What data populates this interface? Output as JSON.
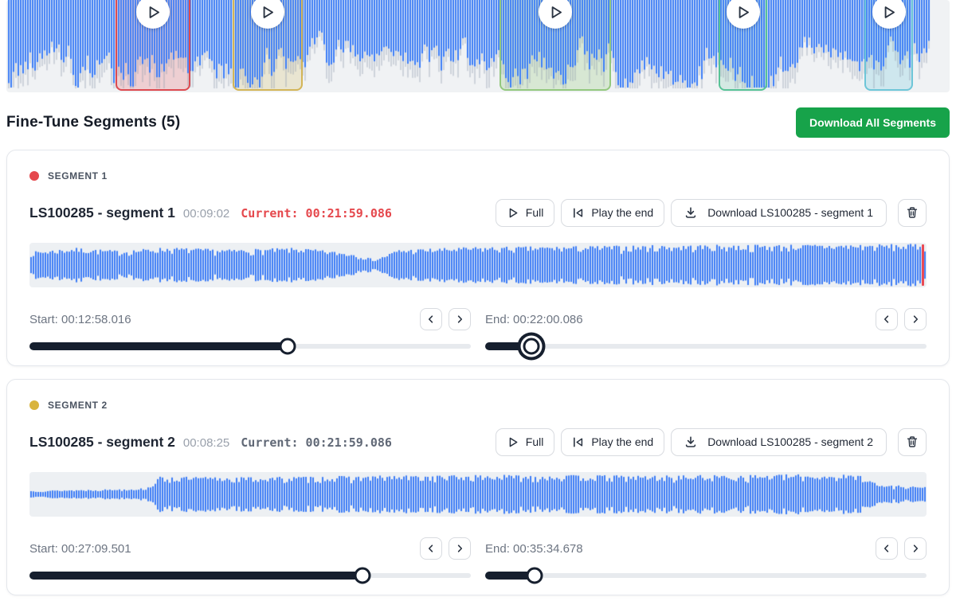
{
  "overview": {
    "wave_color": "#3b7cf6",
    "play_icon": "play",
    "segments": [
      {
        "name": "segment-1",
        "border": "#dd4a50",
        "fill": "rgba(229,72,77,0.20)",
        "left_pct": 11.6,
        "width_pct": 7.9
      },
      {
        "name": "segment-2",
        "border": "#d3b557",
        "fill": "rgba(211,181,87,0.22)",
        "left_pct": 24.0,
        "width_pct": 7.4
      },
      {
        "name": "segment-3",
        "border": "#93c87e",
        "fill": "rgba(150,205,125,0.28)",
        "left_pct": 52.3,
        "width_pct": 11.8
      },
      {
        "name": "segment-4",
        "border": "#57c296",
        "fill": "rgba(98,200,160,0.20)",
        "left_pct": 75.5,
        "width_pct": 5.2
      },
      {
        "name": "segment-5",
        "border": "#6ec6d8",
        "fill": "rgba(120,205,222,0.28)",
        "left_pct": 91.0,
        "width_pct": 5.1
      }
    ]
  },
  "header": {
    "title": "Fine-Tune Segments (5)",
    "download_all_label": "Download All Segments",
    "download_all_color": "#17a34a"
  },
  "segments": [
    {
      "label": "SEGMENT 1",
      "dot_color": "#e5484d",
      "title": "LS100285 - segment 1",
      "duration": "00:09:02",
      "current_label": "Current:",
      "current_value": "00:21:59.086",
      "current_color": "#e5484d",
      "full_label": "Full",
      "play_end_label": "Play the end",
      "download_label": "Download LS100285 - segment 1",
      "start_label": "Start: 00:12:58.016",
      "end_label": "End: 00:22:00.086",
      "start_pct": 58.5,
      "end_pct": 10.5,
      "end_focused": true,
      "playhead": true
    },
    {
      "label": "SEGMENT 2",
      "dot_color": "#d9b43d",
      "title": "LS100285 - segment 2",
      "duration": "00:08:25",
      "current_label": "Current:",
      "current_value": "00:21:59.086",
      "current_color": "#606876",
      "full_label": "Full",
      "play_end_label": "Play the end",
      "download_label": "Download LS100285 - segment 2",
      "start_label": "Start: 00:27:09.501",
      "end_label": "End: 00:35:34.678",
      "start_pct": 75.4,
      "end_pct": 11.2,
      "end_focused": false,
      "playhead": false
    }
  ]
}
